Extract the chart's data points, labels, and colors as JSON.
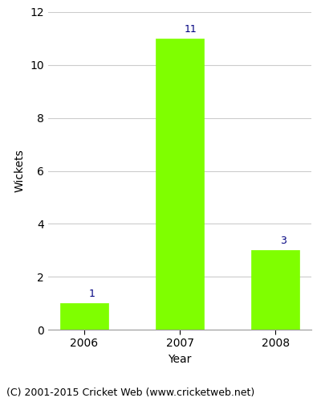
{
  "categories": [
    "2006",
    "2007",
    "2008"
  ],
  "values": [
    1,
    11,
    3
  ],
  "bar_color": "#7FFF00",
  "bar_edgecolor": "#7FFF00",
  "label_color": "#000080",
  "ylabel": "Wickets",
  "xlabel": "Year",
  "ylim": [
    0,
    12
  ],
  "yticks": [
    0,
    2,
    4,
    6,
    8,
    10,
    12
  ],
  "footer": "(C) 2001-2015 Cricket Web (www.cricketweb.net)",
  "background_color": "#ffffff",
  "label_fontsize": 9,
  "axis_label_fontsize": 10,
  "tick_fontsize": 10,
  "footer_fontsize": 9,
  "bar_width": 0.5,
  "grid_color": "#cccccc"
}
